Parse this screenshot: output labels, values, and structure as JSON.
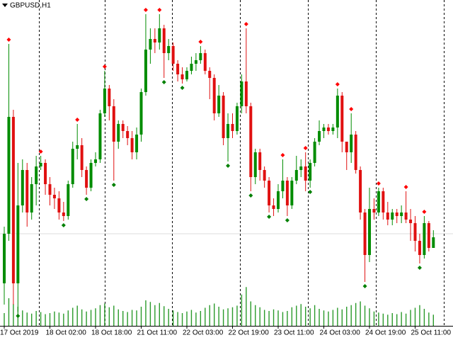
{
  "chart_data": {
    "type": "candlestick",
    "title": "GBPUSD,H1",
    "categories": [
      "17 Oct 2019",
      null,
      null,
      null,
      null,
      null,
      null,
      null,
      null,
      null,
      "18 Oct 02:00",
      null,
      null,
      null,
      null,
      null,
      null,
      null,
      null,
      null,
      "18 Oct 18:00",
      null,
      null,
      null,
      null,
      null,
      null,
      null,
      null,
      null,
      "21 Oct 11:00",
      null,
      null,
      null,
      null,
      null,
      null,
      null,
      null,
      null,
      "22 Oct 03:00",
      null,
      null,
      null,
      null,
      null,
      null,
      null,
      null,
      null,
      "22 Oct 19:00",
      null,
      null,
      null,
      null,
      null,
      null,
      null,
      null,
      null,
      "23 Oct 11:00",
      null,
      null,
      null,
      null,
      null,
      null,
      null,
      null,
      null,
      "24 Oct 03:00",
      null,
      null,
      null,
      null,
      null,
      null,
      null,
      null,
      null,
      "24 Oct 19:00",
      null,
      null,
      null,
      null,
      null,
      null,
      null,
      null,
      null,
      "25 Oct 11:00",
      null,
      null,
      null,
      null
    ],
    "open": [
      1.263,
      1.27,
      1.2865,
      1.263,
      1.274,
      1.279,
      1.273,
      1.277,
      1.2795,
      1.28,
      1.277,
      1.2755,
      1.275,
      1.273,
      1.2725,
      1.277,
      1.282,
      1.2825,
      1.279,
      1.2765,
      1.28,
      1.2805,
      1.287,
      1.2905,
      1.288,
      1.283,
      1.2855,
      1.2845,
      1.2835,
      1.2815,
      1.284,
      1.29,
      1.296,
      1.2975,
      1.297,
      1.299,
      1.2955,
      1.2965,
      1.294,
      1.2925,
      1.2918,
      1.293,
      1.294,
      1.2945,
      1.2955,
      1.293,
      1.292,
      1.287,
      1.2895,
      1.2835,
      1.2855,
      1.2845,
      1.288,
      1.2915,
      1.288,
      1.278,
      1.2815,
      1.279,
      1.2775,
      1.274,
      1.2735,
      1.276,
      1.2775,
      1.274,
      1.2775,
      1.279,
      1.2795,
      1.2775,
      1.28,
      1.283,
      1.2845,
      1.285,
      1.2845,
      1.285,
      1.2895,
      1.283,
      1.2815,
      1.284,
      1.279,
      1.273,
      1.267,
      1.2735,
      1.273,
      1.276,
      1.273,
      1.272,
      1.273,
      1.2725,
      1.273,
      1.272,
      1.2715,
      1.269,
      1.267,
      1.2715,
      1.268
    ],
    "high": [
      1.271,
      1.2968,
      1.2875,
      1.28,
      1.2805,
      1.28,
      1.278,
      1.281,
      1.281,
      1.2805,
      1.278,
      1.2765,
      1.276,
      1.2745,
      1.2775,
      1.283,
      1.2855,
      1.2835,
      1.2795,
      1.2805,
      1.2815,
      1.2875,
      1.293,
      1.291,
      1.289,
      1.286,
      1.286,
      1.2852,
      1.2845,
      1.285,
      1.2905,
      1.301,
      1.299,
      1.299,
      1.301,
      1.2995,
      1.2975,
      1.297,
      1.2945,
      1.2935,
      1.2935,
      1.295,
      1.2955,
      1.2965,
      1.296,
      1.2935,
      1.2925,
      1.291,
      1.29,
      1.287,
      1.287,
      1.2885,
      1.2925,
      1.299,
      1.2885,
      1.282,
      1.282,
      1.2795,
      1.278,
      1.275,
      1.277,
      1.2805,
      1.278,
      1.278,
      1.281,
      1.2805,
      1.2815,
      1.2805,
      1.2835,
      1.286,
      1.2855,
      1.2855,
      1.2855,
      1.2905,
      1.29,
      1.283,
      1.287,
      1.2845,
      1.2795,
      1.2735,
      1.2765,
      1.275,
      1.2765,
      1.2765,
      1.2745,
      1.2735,
      1.2735,
      1.274,
      1.276,
      1.2735,
      1.2725,
      1.27,
      1.2725,
      1.2718,
      1.2705
    ],
    "low": [
      1.26,
      1.269,
      1.26,
      1.259,
      1.273,
      1.271,
      1.272,
      1.274,
      1.279,
      1.2755,
      1.274,
      1.2735,
      1.272,
      1.2718,
      1.272,
      1.2765,
      1.2805,
      1.278,
      1.2755,
      1.276,
      1.2795,
      1.28,
      1.2865,
      1.286,
      1.2775,
      1.282,
      1.2835,
      1.2825,
      1.2805,
      1.2805,
      1.283,
      1.2895,
      1.294,
      1.2955,
      1.296,
      1.292,
      1.2945,
      1.293,
      1.2915,
      1.2912,
      1.2915,
      1.2925,
      1.293,
      1.294,
      1.2925,
      1.289,
      1.286,
      1.2865,
      1.2825,
      1.2802,
      1.2835,
      1.284,
      1.287,
      1.287,
      1.276,
      1.277,
      1.2775,
      1.2765,
      1.273,
      1.2725,
      1.273,
      1.275,
      1.2725,
      1.2735,
      1.277,
      1.278,
      1.276,
      1.2765,
      1.2795,
      1.2825,
      1.2835,
      1.284,
      1.284,
      1.2835,
      1.2815,
      1.279,
      1.28,
      1.2785,
      1.272,
      1.2632,
      1.266,
      1.272,
      1.2725,
      1.272,
      1.2712,
      1.2712,
      1.2715,
      1.2715,
      1.2715,
      1.269,
      1.2675,
      1.2658,
      1.2665,
      1.2675,
      1.268
    ],
    "close": [
      1.27,
      1.2865,
      1.263,
      1.274,
      1.279,
      1.273,
      1.277,
      1.2795,
      1.28,
      1.277,
      1.2755,
      1.275,
      1.273,
      1.2725,
      1.277,
      1.282,
      1.2825,
      1.279,
      1.2765,
      1.28,
      1.2805,
      1.287,
      1.2905,
      1.288,
      1.283,
      1.2855,
      1.2845,
      1.2835,
      1.2815,
      1.284,
      1.29,
      1.296,
      1.2975,
      1.297,
      1.299,
      1.2955,
      1.2965,
      1.294,
      1.2925,
      1.2918,
      1.293,
      1.294,
      1.2945,
      1.2955,
      1.293,
      1.292,
      1.287,
      1.2895,
      1.2835,
      1.2855,
      1.2845,
      1.288,
      1.2915,
      1.288,
      1.278,
      1.2815,
      1.279,
      1.2775,
      1.274,
      1.2735,
      1.276,
      1.2775,
      1.274,
      1.2775,
      1.279,
      1.2795,
      1.2775,
      1.28,
      1.283,
      1.2845,
      1.285,
      1.2845,
      1.285,
      1.2895,
      1.283,
      1.2815,
      1.284,
      1.279,
      1.273,
      1.267,
      1.2735,
      1.273,
      1.276,
      1.273,
      1.272,
      1.273,
      1.2725,
      1.273,
      1.272,
      1.2715,
      1.269,
      1.267,
      1.2715,
      1.268,
      1.2695
    ],
    "volume": [
      2400,
      5200,
      4100,
      3600,
      2900,
      2500,
      2300,
      2800,
      2600,
      2200,
      2400,
      2700,
      2500,
      2300,
      2900,
      3400,
      3800,
      3100,
      2700,
      3000,
      3300,
      3900,
      4200,
      3500,
      3800,
      3100,
      2800,
      2600,
      3000,
      2900,
      3600,
      4800,
      4500,
      3900,
      4300,
      3700,
      3200,
      2900,
      2600,
      2400,
      2700,
      3000,
      2500,
      2800,
      3400,
      3900,
      4200,
      3600,
      3100,
      3300,
      3500,
      3800,
      5900,
      7300,
      4600,
      3900,
      3500,
      3000,
      2800,
      3100,
      2900,
      2600,
      2800,
      3500,
      3800,
      4100,
      3600,
      3300,
      3900,
      3200,
      2900,
      2700,
      3000,
      3400,
      3100,
      3600,
      3900,
      4300,
      4600,
      3800,
      3300,
      2700,
      2500,
      2300,
      2100,
      2400,
      2200,
      2600,
      2300,
      3000,
      3400,
      3900,
      3200,
      2500,
      2100
    ],
    "ylim": [
      1.257,
      1.303
    ],
    "volume_lim": [
      0,
      8000
    ],
    "fractal_high_bars": [
      1,
      8,
      16,
      22,
      31,
      34,
      43,
      53,
      61,
      66,
      73,
      76,
      82,
      88,
      92
    ],
    "fractal_low_bars": [
      3,
      13,
      18,
      24,
      35,
      39,
      49,
      54,
      58,
      62,
      67,
      79,
      91
    ],
    "up_color": "#008c00",
    "down_color": "#e01010",
    "volume_color": "#2a9a2a",
    "fractal_high_color": "#ff0000",
    "fractal_low_color": "#008000"
  }
}
